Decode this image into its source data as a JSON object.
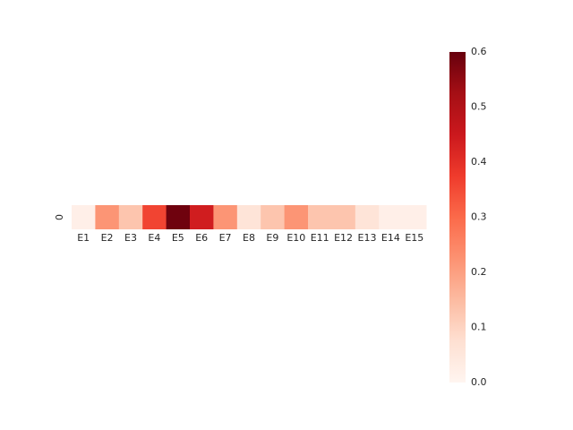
{
  "chart_data": {
    "type": "heatmap",
    "title": "",
    "xlabel": "",
    "ylabel": "",
    "row_labels": [
      "0"
    ],
    "col_labels": [
      "E1",
      "E2",
      "E3",
      "E4",
      "E5",
      "E6",
      "E7",
      "E8",
      "E9",
      "E10",
      "E11",
      "E12",
      "E13",
      "E14",
      "E15"
    ],
    "values": [
      [
        0.02,
        0.22,
        0.13,
        0.36,
        0.59,
        0.44,
        0.22,
        0.06,
        0.13,
        0.22,
        0.13,
        0.13,
        0.06,
        0.02,
        0.02
      ]
    ],
    "colormap": "Reds",
    "vmin": 0.0,
    "vmax": 0.6,
    "colorbar_ticks": [
      "0.0",
      "0.1",
      "0.2",
      "0.3",
      "0.4",
      "0.5",
      "0.6"
    ],
    "colors": [
      "#fff5f0",
      "#fee0d2",
      "#fcbba1",
      "#fc9272",
      "#fb6a4a",
      "#ef3b2c",
      "#cb181d",
      "#a50f15",
      "#67000d"
    ]
  }
}
